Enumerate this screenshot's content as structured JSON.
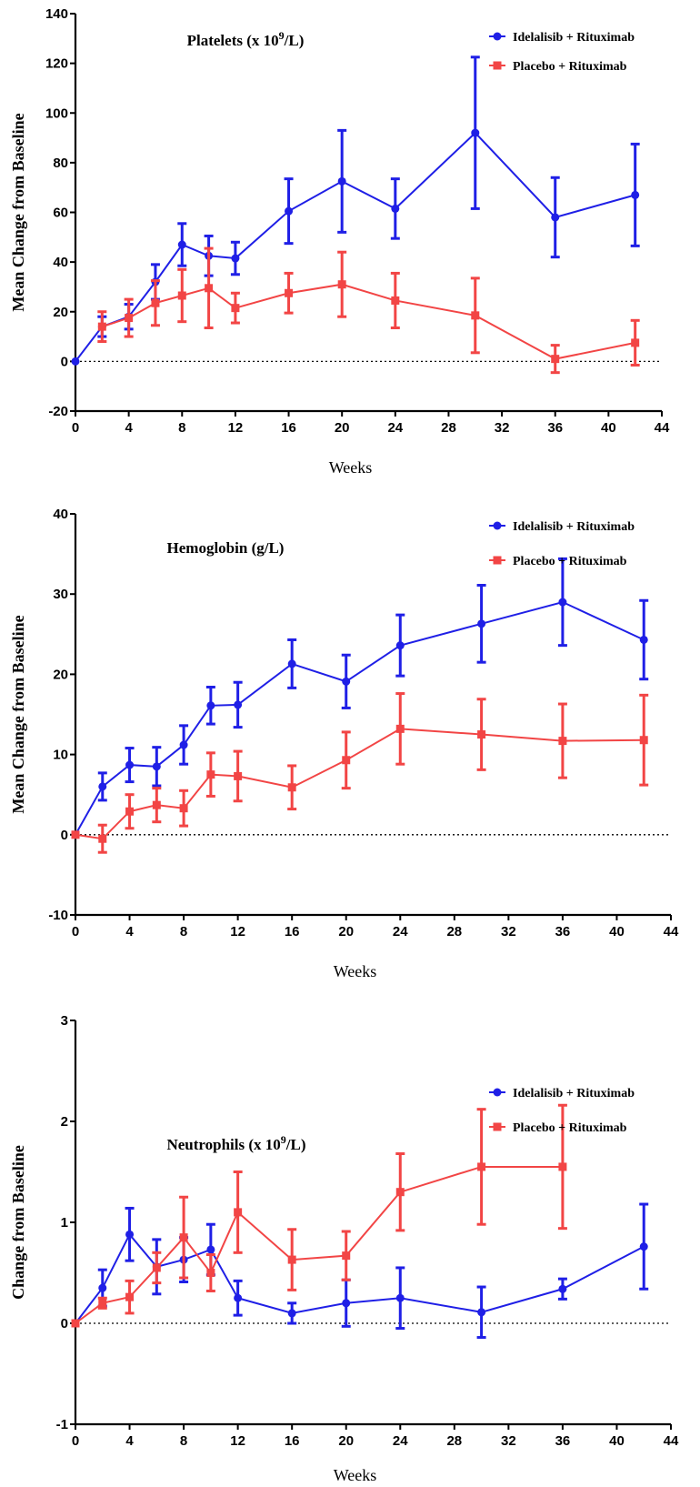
{
  "chart_data": [
    {
      "type": "line",
      "title": "Platelets (x 10",
      "title_sup": "9",
      "title_suffix": "/L)",
      "xlabel": "Weeks",
      "ylabel": "Mean Change from  Baseline",
      "xlim": [
        0,
        44
      ],
      "ylim": [
        -20,
        140
      ],
      "xticks": [
        0,
        4,
        8,
        12,
        16,
        20,
        24,
        28,
        32,
        36,
        40,
        44
      ],
      "yticks": [
        -20,
        0,
        20,
        40,
        60,
        80,
        100,
        120,
        140
      ],
      "reference_line": 0,
      "legend_position": "top-right",
      "series": [
        {
          "name": "Idelalisib + Rituximab",
          "color": "#1f1fe6",
          "marker": "circle",
          "x": [
            0,
            2,
            4,
            6,
            8,
            10,
            12,
            16,
            20,
            24,
            30,
            36,
            42
          ],
          "y": [
            0,
            14,
            18,
            32,
            47,
            42.5,
            41.5,
            60.5,
            72.5,
            61.5,
            92,
            58,
            67
          ],
          "err": [
            0,
            4,
            5,
            7,
            8.5,
            8,
            6.5,
            13,
            20.5,
            12,
            30.5,
            16,
            20.5
          ]
        },
        {
          "name": "Placebo + Rituximab",
          "color": "#f24545",
          "marker": "square",
          "x": [
            2,
            4,
            6,
            8,
            10,
            12,
            16,
            20,
            24,
            30,
            36,
            42
          ],
          "y": [
            14,
            17.5,
            23.5,
            26.5,
            29.5,
            21.5,
            27.5,
            31,
            24.5,
            18.5,
            1,
            7.5
          ],
          "err": [
            6,
            7.5,
            9,
            10.5,
            16,
            6,
            8,
            13,
            11,
            15,
            5.5,
            9
          ]
        }
      ]
    },
    {
      "type": "line",
      "title": "Hemoglobin (g/L)",
      "title_sup": "",
      "title_suffix": "",
      "xlabel": "Weeks",
      "ylabel": "Mean Change from  Baseline",
      "xlim": [
        0,
        44
      ],
      "ylim": [
        -10,
        40
      ],
      "xticks": [
        0,
        4,
        8,
        12,
        16,
        20,
        24,
        28,
        32,
        36,
        40,
        44
      ],
      "yticks": [
        -10,
        0,
        10,
        20,
        30,
        40
      ],
      "reference_line": 0,
      "legend_position": "top-right",
      "series": [
        {
          "name": "Idelalisib + Rituximab",
          "color": "#1f1fe6",
          "marker": "circle",
          "x": [
            0,
            2,
            4,
            6,
            8,
            10,
            12,
            16,
            20,
            24,
            30,
            36,
            42
          ],
          "y": [
            0,
            6,
            8.7,
            8.5,
            11.2,
            16.1,
            16.2,
            21.3,
            19.1,
            23.6,
            26.3,
            29,
            24.3
          ],
          "err": [
            0,
            1.7,
            2.1,
            2.4,
            2.4,
            2.3,
            2.8,
            3,
            3.3,
            3.8,
            4.8,
            5.4,
            4.9
          ]
        },
        {
          "name": "Placebo + Rituximab",
          "color": "#f24545",
          "marker": "square",
          "x": [
            0,
            2,
            4,
            6,
            8,
            10,
            12,
            16,
            20,
            24,
            30,
            36,
            42
          ],
          "y": [
            0,
            -0.5,
            2.9,
            3.7,
            3.3,
            7.5,
            7.3,
            5.9,
            9.3,
            13.2,
            12.5,
            11.7,
            11.8
          ],
          "err": [
            0,
            1.7,
            2.1,
            2.1,
            2.2,
            2.7,
            3.1,
            2.7,
            3.5,
            4.4,
            4.4,
            4.6,
            5.6
          ]
        }
      ]
    },
    {
      "type": "line",
      "title": "Neutrophils (x 10",
      "title_sup": "9",
      "title_suffix": "/L)",
      "xlabel": "Weeks",
      "ylabel": "Change from Baseline",
      "xlim": [
        0,
        44
      ],
      "ylim": [
        -1,
        3
      ],
      "xticks": [
        0,
        4,
        8,
        12,
        16,
        20,
        24,
        28,
        32,
        36,
        40,
        44
      ],
      "yticks": [
        -1,
        0,
        1,
        2,
        3
      ],
      "reference_line": 0,
      "legend_position": "top-right",
      "series": [
        {
          "name": "Idelalisib + Rituximab",
          "color": "#1f1fe6",
          "marker": "circle",
          "x": [
            0,
            2,
            4,
            6,
            8,
            10,
            12,
            16,
            20,
            24,
            30,
            36,
            42
          ],
          "y": [
            0,
            0.35,
            0.88,
            0.56,
            0.63,
            0.73,
            0.25,
            0.1,
            0.2,
            0.25,
            0.11,
            0.34,
            0.76
          ],
          "err": [
            0,
            0.18,
            0.26,
            0.27,
            0.22,
            0.25,
            0.17,
            0.1,
            0.23,
            0.3,
            0.25,
            0.1,
            0.42
          ]
        },
        {
          "name": "Placebo + Rituximab",
          "color": "#f24545",
          "marker": "square",
          "x": [
            0,
            2,
            4,
            6,
            8,
            10,
            12,
            16,
            20,
            24,
            30,
            36
          ],
          "y": [
            0,
            0.2,
            0.26,
            0.55,
            0.85,
            0.5,
            1.1,
            0.63,
            0.67,
            1.3,
            1.55,
            1.55
          ],
          "err": [
            0,
            0.05,
            0.16,
            0.15,
            0.4,
            0.18,
            0.4,
            0.3,
            0.24,
            0.38,
            0.57,
            0.61
          ]
        }
      ]
    }
  ]
}
